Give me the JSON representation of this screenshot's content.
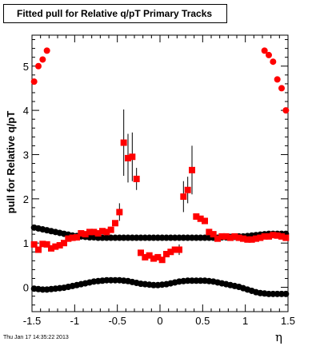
{
  "title": "Fitted pull for Relative q/pT  Primary Tracks",
  "timestamp": "Thu Jan 17 14:35:22 2013",
  "chart_data": {
    "type": "scatter",
    "xlabel": "η",
    "ylabel": "pull for Relative q/pT",
    "xlim": [
      -1.5,
      1.5
    ],
    "ylim": [
      -0.55,
      5.7
    ],
    "xticks": [
      "-1.5",
      "-1",
      "-0.5",
      "0",
      "0.5",
      "1",
      "1.5"
    ],
    "yticks": [
      "0",
      "1",
      "2",
      "3",
      "4",
      "5"
    ],
    "grid": false,
    "series": [
      {
        "marker": "circle",
        "color": "#ff0000",
        "x": [
          -1.475,
          -1.425,
          -1.375,
          -1.325,
          1.225,
          1.275,
          1.325,
          1.375,
          1.425,
          1.475
        ],
        "y": [
          4.65,
          5.0,
          5.15,
          5.35,
          5.35,
          5.25,
          5.1,
          4.7,
          4.5,
          4.0
        ]
      },
      {
        "marker": "circle",
        "color": "#000000",
        "x": [
          -1.475,
          -1.425,
          -1.375,
          -1.325,
          -1.275,
          -1.225,
          -1.175,
          -1.125,
          -1.075,
          -1.025,
          -0.975,
          -0.925,
          -0.875,
          -0.825,
          -0.775,
          -0.725,
          -0.675,
          -0.625,
          -0.575,
          -0.525,
          -0.475,
          -0.425,
          -0.375,
          -0.325,
          -0.275,
          -0.225,
          -0.175,
          -0.125,
          -0.075,
          -0.025,
          0.025,
          0.075,
          0.125,
          0.175,
          0.225,
          0.275,
          0.325,
          0.375,
          0.425,
          0.475,
          0.525,
          0.575,
          0.625,
          0.675,
          0.725,
          0.775,
          0.825,
          0.875,
          0.925,
          0.975,
          1.025,
          1.075,
          1.125,
          1.175,
          1.225,
          1.275,
          1.325,
          1.375,
          1.425,
          1.475
        ],
        "y": [
          1.35,
          1.33,
          1.31,
          1.29,
          1.27,
          1.25,
          1.23,
          1.21,
          1.19,
          1.17,
          1.16,
          1.15,
          1.14,
          1.13,
          1.13,
          1.12,
          1.12,
          1.12,
          1.12,
          1.12,
          1.12,
          1.12,
          1.12,
          1.12,
          1.12,
          1.12,
          1.12,
          1.12,
          1.12,
          1.12,
          1.12,
          1.12,
          1.12,
          1.12,
          1.12,
          1.12,
          1.12,
          1.12,
          1.12,
          1.12,
          1.12,
          1.12,
          1.12,
          1.12,
          1.13,
          1.13,
          1.14,
          1.14,
          1.15,
          1.15,
          1.16,
          1.17,
          1.18,
          1.19,
          1.2,
          1.21,
          1.21,
          1.21,
          1.21,
          1.21
        ]
      },
      {
        "marker": "circle",
        "color": "#000000",
        "x": [
          -1.475,
          -1.425,
          -1.375,
          -1.325,
          -1.275,
          -1.225,
          -1.175,
          -1.125,
          -1.075,
          -1.025,
          -0.975,
          -0.925,
          -0.875,
          -0.825,
          -0.775,
          -0.725,
          -0.675,
          -0.625,
          -0.575,
          -0.525,
          -0.475,
          -0.425,
          -0.375,
          -0.325,
          -0.275,
          -0.225,
          -0.175,
          -0.125,
          -0.075,
          -0.025,
          0.025,
          0.075,
          0.125,
          0.175,
          0.225,
          0.275,
          0.325,
          0.375,
          0.425,
          0.475,
          0.525,
          0.575,
          0.625,
          0.675,
          0.725,
          0.775,
          0.825,
          0.875,
          0.925,
          0.975,
          1.025,
          1.075,
          1.125,
          1.175,
          1.225,
          1.275,
          1.325,
          1.375,
          1.425,
          1.475
        ],
        "y": [
          -0.03,
          -0.04,
          -0.05,
          -0.05,
          -0.04,
          -0.03,
          -0.02,
          -0.01,
          0.01,
          0.03,
          0.05,
          0.07,
          0.09,
          0.11,
          0.13,
          0.14,
          0.15,
          0.16,
          0.16,
          0.16,
          0.16,
          0.15,
          0.14,
          0.12,
          0.1,
          0.08,
          0.07,
          0.06,
          0.05,
          0.05,
          0.06,
          0.07,
          0.09,
          0.11,
          0.13,
          0.14,
          0.15,
          0.15,
          0.15,
          0.15,
          0.15,
          0.14,
          0.13,
          0.11,
          0.09,
          0.07,
          0.05,
          0.03,
          0.01,
          -0.02,
          -0.05,
          -0.08,
          -0.11,
          -0.13,
          -0.14,
          -0.15,
          -0.15,
          -0.15,
          -0.15,
          -0.15
        ]
      },
      {
        "marker": "square",
        "color": "#ff0000",
        "x": [
          -1.475,
          -1.425,
          -1.375,
          -1.325,
          -1.275,
          -1.225,
          -1.175,
          -1.125,
          -1.075,
          -1.025,
          -0.975,
          -0.925,
          -0.875,
          -0.825,
          -0.775,
          -0.725,
          -0.675,
          -0.625,
          -0.575,
          -0.525,
          -0.475,
          -0.425,
          -0.375,
          -0.325,
          -0.275,
          -0.225,
          -0.175,
          -0.125,
          -0.075,
          -0.025,
          0.025,
          0.075,
          0.125,
          0.175,
          0.225,
          0.275,
          0.325,
          0.375,
          0.425,
          0.475,
          0.525,
          0.575,
          0.625,
          0.675,
          0.725,
          0.775,
          0.825,
          0.875,
          0.925,
          0.975,
          1.025,
          1.075,
          1.125,
          1.175,
          1.225,
          1.275,
          1.325,
          1.375,
          1.425,
          1.475
        ],
        "y": [
          0.97,
          0.85,
          0.98,
          0.97,
          0.88,
          0.92,
          0.95,
          1.0,
          1.1,
          1.12,
          1.13,
          1.22,
          1.2,
          1.25,
          1.25,
          1.22,
          1.27,
          1.25,
          1.3,
          1.45,
          1.7,
          3.27,
          2.92,
          2.95,
          2.45,
          0.78,
          0.68,
          0.72,
          0.65,
          0.68,
          0.62,
          0.75,
          0.8,
          0.85,
          0.85,
          2.05,
          2.2,
          2.65,
          1.6,
          1.55,
          1.5,
          1.25,
          1.2,
          1.1,
          1.15,
          1.15,
          1.12,
          1.15,
          1.12,
          1.1,
          1.08,
          1.08,
          1.1,
          1.12,
          1.15,
          1.15,
          1.18,
          1.17,
          1.15,
          1.12
        ],
        "err": [
          0,
          0,
          0,
          0,
          0,
          0,
          0,
          0,
          0,
          0,
          0,
          0,
          0,
          0,
          0,
          0,
          0,
          0,
          0,
          0,
          0.2,
          0.75,
          0.55,
          0.55,
          0.25,
          0,
          0,
          0,
          0,
          0,
          0,
          0,
          0,
          0.05,
          0.12,
          0.35,
          0.3,
          0.55,
          0,
          0,
          0,
          0,
          0,
          0,
          0,
          0,
          0,
          0,
          0,
          0,
          0,
          0,
          0,
          0,
          0,
          0,
          0,
          0,
          0,
          0
        ]
      }
    ]
  }
}
